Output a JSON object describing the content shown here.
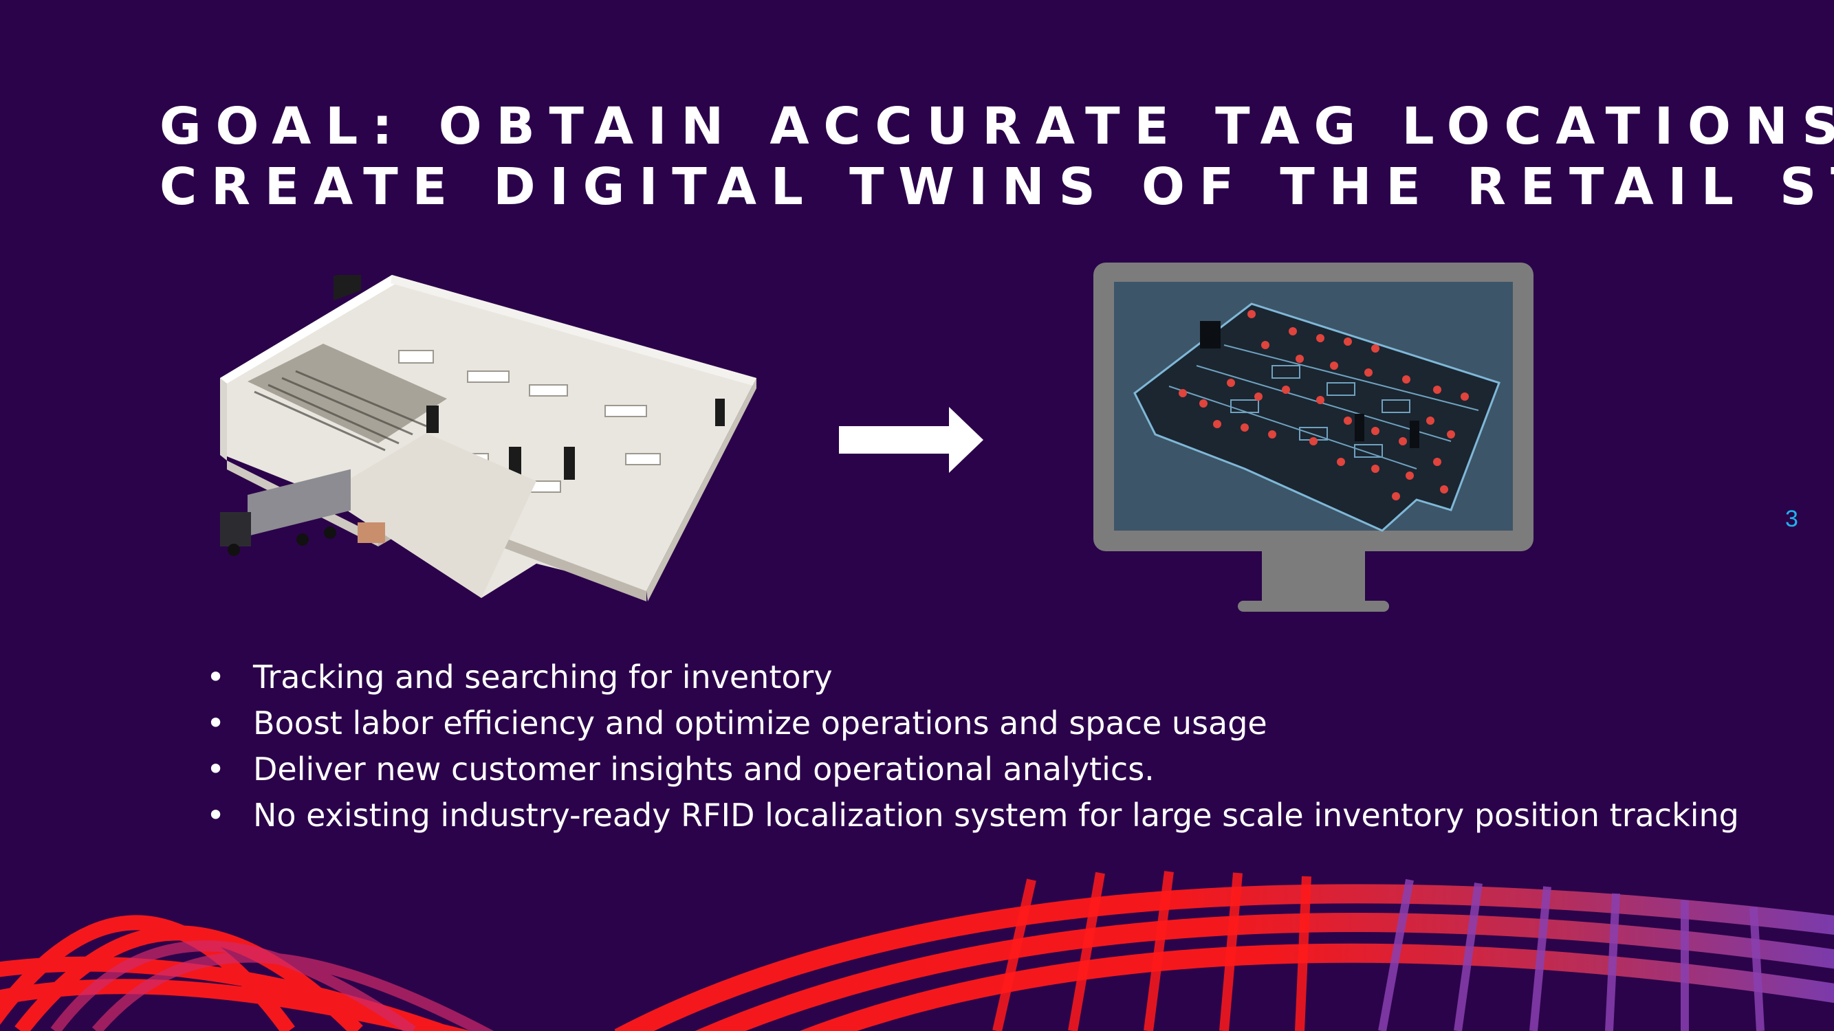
{
  "slide": {
    "title_line1": "Goal: Obtain accurate tag locations and",
    "title_line2": "create digital twins of the retail store",
    "page_number": "3",
    "bullets": [
      "Tracking and searching for inventory",
      "Boost labor efficiency and optimize operations and space usage",
      "Deliver new customer insights and operational analytics.",
      "No existing industry-ready RFID localization system for large scale inventory position tracking"
    ]
  },
  "colors": {
    "background": "#2b034a",
    "title_text": "#ffffff",
    "bullet_text": "#ffffff",
    "page_number": "#1fb3ee",
    "monitor_frame": "#7c7c7c",
    "monitor_screen": "#3d5568",
    "tag_marker": "#e0443c",
    "ribbon_red": "#ff1a1a",
    "ribbon_purple": "#7a3fb8"
  },
  "icons": {
    "store": "retail-store-3d-icon",
    "arrow": "right-arrow-icon",
    "monitor": "monitor-icon",
    "tag": "location-pin-icon"
  }
}
